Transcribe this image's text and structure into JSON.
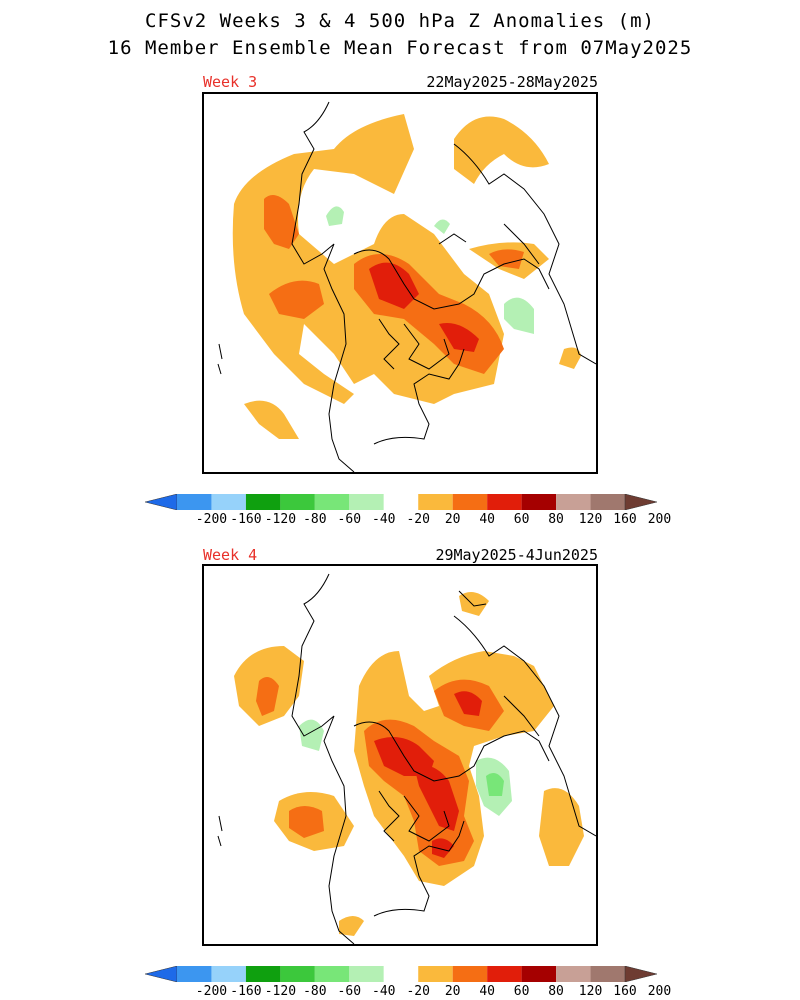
{
  "title": {
    "line1": "CFSv2 Weeks 3 & 4 500 hPa Z Anomalies (m)",
    "line2": "16 Member Ensemble Mean Forecast from 07May2025"
  },
  "panels": [
    {
      "week": "Week 3",
      "dates": "22May2025-28May2025"
    },
    {
      "week": "Week 4",
      "dates": "29May2025-4Jun2025"
    }
  ],
  "colorbar": {
    "labels": [
      "-200",
      "-160",
      "-120",
      "-80",
      "-60",
      "-40",
      "-20",
      "20",
      "40",
      "60",
      "80",
      "120",
      "160",
      "200"
    ],
    "colors": [
      "#1e6ae8",
      "#3c96f0",
      "#96d2fa",
      "#0fa00f",
      "#3cc83c",
      "#78e678",
      "#b4f0b4",
      "#ffffff",
      "#fab93c",
      "#f56e14",
      "#e11e0a",
      "#a50000",
      "#c8a096",
      "#a0786e",
      "#6e3c32"
    ],
    "unit": "m"
  }
}
